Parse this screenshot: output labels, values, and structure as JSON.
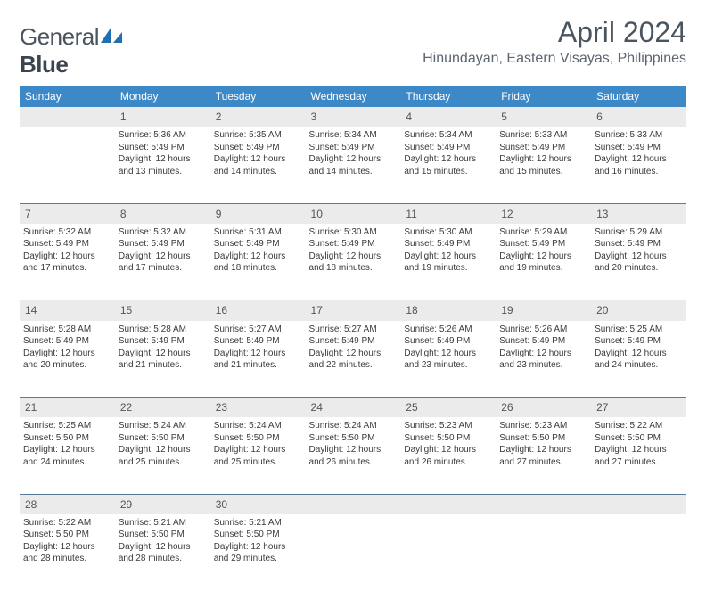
{
  "brand": {
    "part1": "General",
    "part2": "Blue"
  },
  "title": "April 2024",
  "location": "Hinundayan, Eastern Visayas, Philippines",
  "colors": {
    "header_bg": "#3d88c7",
    "header_text": "#ffffff",
    "daynum_bg": "#ebebeb",
    "border": "#5a7a9a",
    "title_color": "#4a5560",
    "body_text": "#3a3a3a",
    "logo_accent": "#1f6fb2"
  },
  "typography": {
    "month_fontsize": 32,
    "location_fontsize": 16,
    "dayheader_fontsize": 12,
    "daynum_fontsize": 12,
    "cell_fontsize": 10
  },
  "day_headers": [
    "Sunday",
    "Monday",
    "Tuesday",
    "Wednesday",
    "Thursday",
    "Friday",
    "Saturday"
  ],
  "weeks": [
    {
      "nums": [
        "",
        "1",
        "2",
        "3",
        "4",
        "5",
        "6"
      ],
      "cells": [
        null,
        {
          "sunrise": "Sunrise: 5:36 AM",
          "sunset": "Sunset: 5:49 PM",
          "day1": "Daylight: 12 hours",
          "day2": "and 13 minutes."
        },
        {
          "sunrise": "Sunrise: 5:35 AM",
          "sunset": "Sunset: 5:49 PM",
          "day1": "Daylight: 12 hours",
          "day2": "and 14 minutes."
        },
        {
          "sunrise": "Sunrise: 5:34 AM",
          "sunset": "Sunset: 5:49 PM",
          "day1": "Daylight: 12 hours",
          "day2": "and 14 minutes."
        },
        {
          "sunrise": "Sunrise: 5:34 AM",
          "sunset": "Sunset: 5:49 PM",
          "day1": "Daylight: 12 hours",
          "day2": "and 15 minutes."
        },
        {
          "sunrise": "Sunrise: 5:33 AM",
          "sunset": "Sunset: 5:49 PM",
          "day1": "Daylight: 12 hours",
          "day2": "and 15 minutes."
        },
        {
          "sunrise": "Sunrise: 5:33 AM",
          "sunset": "Sunset: 5:49 PM",
          "day1": "Daylight: 12 hours",
          "day2": "and 16 minutes."
        }
      ]
    },
    {
      "nums": [
        "7",
        "8",
        "9",
        "10",
        "11",
        "12",
        "13"
      ],
      "cells": [
        {
          "sunrise": "Sunrise: 5:32 AM",
          "sunset": "Sunset: 5:49 PM",
          "day1": "Daylight: 12 hours",
          "day2": "and 17 minutes."
        },
        {
          "sunrise": "Sunrise: 5:32 AM",
          "sunset": "Sunset: 5:49 PM",
          "day1": "Daylight: 12 hours",
          "day2": "and 17 minutes."
        },
        {
          "sunrise": "Sunrise: 5:31 AM",
          "sunset": "Sunset: 5:49 PM",
          "day1": "Daylight: 12 hours",
          "day2": "and 18 minutes."
        },
        {
          "sunrise": "Sunrise: 5:30 AM",
          "sunset": "Sunset: 5:49 PM",
          "day1": "Daylight: 12 hours",
          "day2": "and 18 minutes."
        },
        {
          "sunrise": "Sunrise: 5:30 AM",
          "sunset": "Sunset: 5:49 PM",
          "day1": "Daylight: 12 hours",
          "day2": "and 19 minutes."
        },
        {
          "sunrise": "Sunrise: 5:29 AM",
          "sunset": "Sunset: 5:49 PM",
          "day1": "Daylight: 12 hours",
          "day2": "and 19 minutes."
        },
        {
          "sunrise": "Sunrise: 5:29 AM",
          "sunset": "Sunset: 5:49 PM",
          "day1": "Daylight: 12 hours",
          "day2": "and 20 minutes."
        }
      ]
    },
    {
      "nums": [
        "14",
        "15",
        "16",
        "17",
        "18",
        "19",
        "20"
      ],
      "cells": [
        {
          "sunrise": "Sunrise: 5:28 AM",
          "sunset": "Sunset: 5:49 PM",
          "day1": "Daylight: 12 hours",
          "day2": "and 20 minutes."
        },
        {
          "sunrise": "Sunrise: 5:28 AM",
          "sunset": "Sunset: 5:49 PM",
          "day1": "Daylight: 12 hours",
          "day2": "and 21 minutes."
        },
        {
          "sunrise": "Sunrise: 5:27 AM",
          "sunset": "Sunset: 5:49 PM",
          "day1": "Daylight: 12 hours",
          "day2": "and 21 minutes."
        },
        {
          "sunrise": "Sunrise: 5:27 AM",
          "sunset": "Sunset: 5:49 PM",
          "day1": "Daylight: 12 hours",
          "day2": "and 22 minutes."
        },
        {
          "sunrise": "Sunrise: 5:26 AM",
          "sunset": "Sunset: 5:49 PM",
          "day1": "Daylight: 12 hours",
          "day2": "and 23 minutes."
        },
        {
          "sunrise": "Sunrise: 5:26 AM",
          "sunset": "Sunset: 5:49 PM",
          "day1": "Daylight: 12 hours",
          "day2": "and 23 minutes."
        },
        {
          "sunrise": "Sunrise: 5:25 AM",
          "sunset": "Sunset: 5:49 PM",
          "day1": "Daylight: 12 hours",
          "day2": "and 24 minutes."
        }
      ]
    },
    {
      "nums": [
        "21",
        "22",
        "23",
        "24",
        "25",
        "26",
        "27"
      ],
      "cells": [
        {
          "sunrise": "Sunrise: 5:25 AM",
          "sunset": "Sunset: 5:50 PM",
          "day1": "Daylight: 12 hours",
          "day2": "and 24 minutes."
        },
        {
          "sunrise": "Sunrise: 5:24 AM",
          "sunset": "Sunset: 5:50 PM",
          "day1": "Daylight: 12 hours",
          "day2": "and 25 minutes."
        },
        {
          "sunrise": "Sunrise: 5:24 AM",
          "sunset": "Sunset: 5:50 PM",
          "day1": "Daylight: 12 hours",
          "day2": "and 25 minutes."
        },
        {
          "sunrise": "Sunrise: 5:24 AM",
          "sunset": "Sunset: 5:50 PM",
          "day1": "Daylight: 12 hours",
          "day2": "and 26 minutes."
        },
        {
          "sunrise": "Sunrise: 5:23 AM",
          "sunset": "Sunset: 5:50 PM",
          "day1": "Daylight: 12 hours",
          "day2": "and 26 minutes."
        },
        {
          "sunrise": "Sunrise: 5:23 AM",
          "sunset": "Sunset: 5:50 PM",
          "day1": "Daylight: 12 hours",
          "day2": "and 27 minutes."
        },
        {
          "sunrise": "Sunrise: 5:22 AM",
          "sunset": "Sunset: 5:50 PM",
          "day1": "Daylight: 12 hours",
          "day2": "and 27 minutes."
        }
      ]
    },
    {
      "nums": [
        "28",
        "29",
        "30",
        "",
        "",
        "",
        ""
      ],
      "cells": [
        {
          "sunrise": "Sunrise: 5:22 AM",
          "sunset": "Sunset: 5:50 PM",
          "day1": "Daylight: 12 hours",
          "day2": "and 28 minutes."
        },
        {
          "sunrise": "Sunrise: 5:21 AM",
          "sunset": "Sunset: 5:50 PM",
          "day1": "Daylight: 12 hours",
          "day2": "and 28 minutes."
        },
        {
          "sunrise": "Sunrise: 5:21 AM",
          "sunset": "Sunset: 5:50 PM",
          "day1": "Daylight: 12 hours",
          "day2": "and 29 minutes."
        },
        null,
        null,
        null,
        null
      ]
    }
  ]
}
